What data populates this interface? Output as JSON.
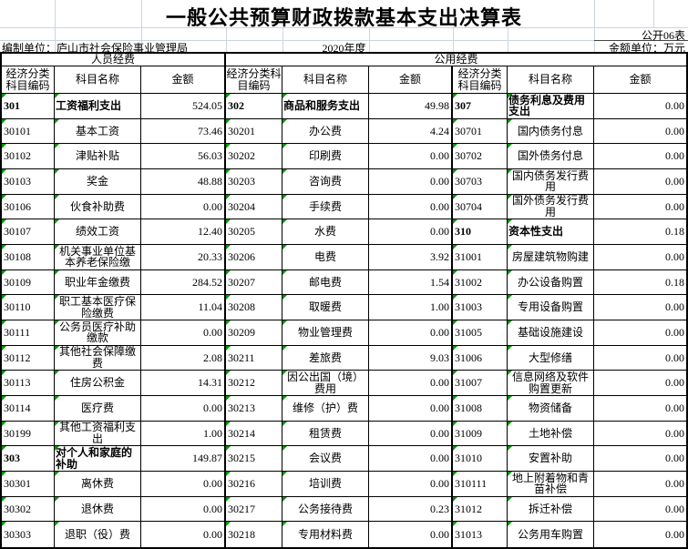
{
  "header": {
    "title": "一般公共预算财政拨款基本支出决算表",
    "doc_number": "公开06表",
    "prepared_by": "编制单位：庐山市社会保险事业管理局",
    "fiscal_year": "2020年度",
    "amount_unit": "金额单位：万元"
  },
  "table": {
    "group_headers": [
      "人员经费",
      "公用经费"
    ],
    "column_headers": [
      "经济分类科目编码",
      "科目名称",
      "金额"
    ],
    "groups": [
      {
        "rows": [
          {
            "code": "301",
            "name": "工资福利支出",
            "amount": "524.05",
            "bold": true
          },
          {
            "code": "30101",
            "name": "基本工资",
            "amount": "73.46"
          },
          {
            "code": "30102",
            "name": "津贴补贴",
            "amount": "56.03"
          },
          {
            "code": "30103",
            "name": "奖金",
            "amount": "48.88"
          },
          {
            "code": "30106",
            "name": "伙食补助费",
            "amount": "0.00"
          },
          {
            "code": "30107",
            "name": "绩效工资",
            "amount": "12.40"
          },
          {
            "code": "30108",
            "name": "机关事业单位基本养老保险缴",
            "amount": "20.33"
          },
          {
            "code": "30109",
            "name": "职业年金缴费",
            "amount": "284.52"
          },
          {
            "code": "30110",
            "name": "职工基本医疗保险缴费",
            "amount": "11.04"
          },
          {
            "code": "30111",
            "name": "公务员医疗补助缴款",
            "amount": "0.00"
          },
          {
            "code": "30112",
            "name": "其他社会保障缴费",
            "amount": "2.08"
          },
          {
            "code": "30113",
            "name": "住房公积金",
            "amount": "14.31"
          },
          {
            "code": "30114",
            "name": "医疗费",
            "amount": "0.00"
          },
          {
            "code": "30199",
            "name": "其他工资福利支出",
            "amount": "1.00"
          },
          {
            "code": "303",
            "name": "对个人和家庭的补助",
            "amount": "149.87",
            "bold": true
          },
          {
            "code": "30301",
            "name": "离休费",
            "amount": "0.00"
          },
          {
            "code": "30302",
            "name": "退休费",
            "amount": "0.00"
          },
          {
            "code": "30303",
            "name": "退职（役）费",
            "amount": "0.00"
          }
        ]
      },
      {
        "rows": [
          {
            "code": "302",
            "name": "商品和服务支出",
            "amount": "49.98",
            "bold": true
          },
          {
            "code": "30201",
            "name": "办公费",
            "amount": "4.24"
          },
          {
            "code": "30202",
            "name": "印刷费",
            "amount": "0.00"
          },
          {
            "code": "30203",
            "name": "咨询费",
            "amount": "0.00"
          },
          {
            "code": "30204",
            "name": "手续费",
            "amount": "0.00"
          },
          {
            "code": "30205",
            "name": "水费",
            "amount": "0.00"
          },
          {
            "code": "30206",
            "name": "电费",
            "amount": "3.92"
          },
          {
            "code": "30207",
            "name": "邮电费",
            "amount": "1.54"
          },
          {
            "code": "30208",
            "name": "取暖费",
            "amount": "1.00"
          },
          {
            "code": "30209",
            "name": "物业管理费",
            "amount": "0.00"
          },
          {
            "code": "30211",
            "name": "差旅费",
            "amount": "9.03"
          },
          {
            "code": "30212",
            "name": "因公出国（境）费用",
            "amount": "0.00"
          },
          {
            "code": "30213",
            "name": "维修（护）费",
            "amount": "0.00"
          },
          {
            "code": "30214",
            "name": "租赁费",
            "amount": "0.00"
          },
          {
            "code": "30215",
            "name": "会议费",
            "amount": "0.00"
          },
          {
            "code": "30216",
            "name": "培训费",
            "amount": "0.00"
          },
          {
            "code": "30217",
            "name": "公务接待费",
            "amount": "0.23"
          },
          {
            "code": "30218",
            "name": "专用材料费",
            "amount": "0.00"
          }
        ]
      },
      {
        "rows": [
          {
            "code": "307",
            "name": "债务利息及费用支出",
            "amount": "0.00",
            "bold": true
          },
          {
            "code": "30701",
            "name": "国内债务付息",
            "amount": "0.00"
          },
          {
            "code": "30702",
            "name": "国外债务付息",
            "amount": "0.00"
          },
          {
            "code": "30703",
            "name": "国内债务发行费用",
            "amount": "0.00"
          },
          {
            "code": "30704",
            "name": "国外债务发行费用",
            "amount": "0.00"
          },
          {
            "code": "310",
            "name": "资本性支出",
            "amount": "0.18",
            "bold": true
          },
          {
            "code": "31001",
            "name": "房屋建筑物购建",
            "amount": "0.00"
          },
          {
            "code": "31002",
            "name": "办公设备购置",
            "amount": "0.18"
          },
          {
            "code": "31003",
            "name": "专用设备购置",
            "amount": "0.00"
          },
          {
            "code": "31005",
            "name": "基础设施建设",
            "amount": "0.00"
          },
          {
            "code": "31006",
            "name": "大型修缮",
            "amount": "0.00"
          },
          {
            "code": "31007",
            "name": "信息网络及软件购置更新",
            "amount": "0.00"
          },
          {
            "code": "31008",
            "name": "物资储备",
            "amount": "0.00"
          },
          {
            "code": "31009",
            "name": "土地补偿",
            "amount": "0.00"
          },
          {
            "code": "31010",
            "name": "安置补助",
            "amount": "0.00"
          },
          {
            "code": "310111",
            "name": "地上附着物和青苗补偿",
            "amount": "0.00"
          },
          {
            "code": "31012",
            "name": "拆迁补偿",
            "amount": "0.00"
          },
          {
            "code": "31013",
            "name": "公务用车购置",
            "amount": "0.00"
          }
        ]
      }
    ]
  },
  "colors": {
    "error_indicator_green": "#009900",
    "gridline": "#ccd3e2",
    "table_border": "#000000",
    "background": "#ffffff"
  }
}
